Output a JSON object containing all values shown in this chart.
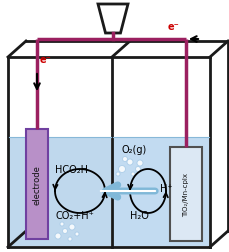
{
  "bg_color": "#ffffff",
  "water_left_color": "#b8d4ec",
  "water_right_color": "#bcd8f0",
  "electrode_face": "#b890c8",
  "electrode_edge": "#7040a0",
  "tio2_face": "#dce8f4",
  "tio2_edge": "#505050",
  "box_color": "#1a1a1a",
  "wire_color": "#9b2060",
  "h_arrow_color": "#80b8d8",
  "e_label_color": "#cc0000",
  "label_electrode": "electrode",
  "label_tio2": "TiO₂/Mn-cplx",
  "label_hco2h": "HCO₂H",
  "label_co2": "CO₂+H⁺",
  "label_o2": "O₂(g)",
  "label_h2o": "H₂O",
  "label_hplus": "H⁺",
  "e_left": "e⁻",
  "e_right": "e⁻"
}
